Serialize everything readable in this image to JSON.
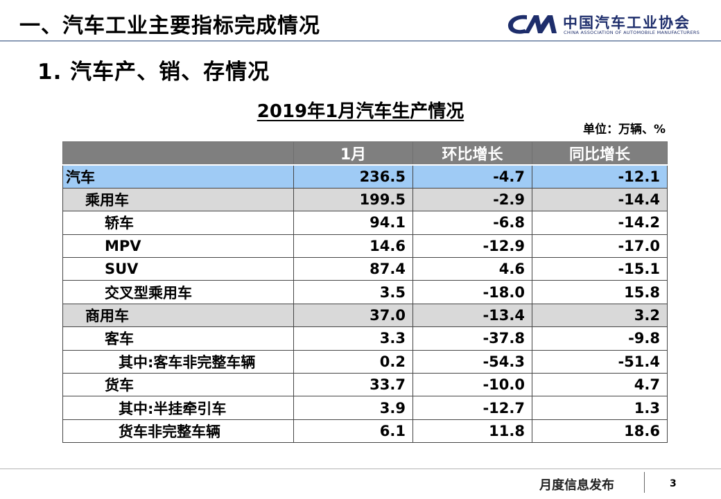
{
  "header": {
    "title": "一、汽车工业主要指标完成情况",
    "logo_cn": "中国汽车工业协会",
    "logo_en": "CHINA ASSOCIATION OF AUTOMOBILE MANUFACTURERS",
    "logo_mark_color": "#1d2d6b"
  },
  "section_title": "1. 汽车产、销、存情况",
  "table": {
    "title": "2019年1月汽车生产情况",
    "unit": "单位：万辆、%",
    "columns": [
      "",
      "1月",
      "环比增长",
      "同比增长"
    ],
    "rows": [
      {
        "label": "汽车",
        "level": 0,
        "values": [
          "236.5",
          "-4.7",
          "-12.1"
        ]
      },
      {
        "label": "乘用车",
        "level": 1,
        "values": [
          "199.5",
          "-2.9",
          "-14.4"
        ]
      },
      {
        "label": "轿车",
        "level": 2,
        "values": [
          "94.1",
          "-6.8",
          "-14.2"
        ]
      },
      {
        "label": "MPV",
        "level": 2,
        "values": [
          "14.6",
          "-12.9",
          "-17.0"
        ]
      },
      {
        "label": "SUV",
        "level": 2,
        "values": [
          "87.4",
          "4.6",
          "-15.1"
        ]
      },
      {
        "label": "交叉型乘用车",
        "level": 2,
        "values": [
          "3.5",
          "-18.0",
          "15.8"
        ]
      },
      {
        "label": "商用车",
        "level": 1,
        "values": [
          "37.0",
          "-13.4",
          "3.2"
        ]
      },
      {
        "label": "客车",
        "level": 2,
        "values": [
          "3.3",
          "-37.8",
          "-9.8"
        ]
      },
      {
        "label": "其中:客车非完整车辆",
        "level": 3,
        "values": [
          "0.2",
          "-54.3",
          "-51.4"
        ]
      },
      {
        "label": "货车",
        "level": 2,
        "values": [
          "33.7",
          "-10.0",
          "4.7"
        ]
      },
      {
        "label": "其中:半挂牵引车",
        "level": 3,
        "values": [
          "3.9",
          "-12.7",
          "1.3"
        ]
      },
      {
        "label": "货车非完整车辆",
        "level": 3,
        "values": [
          "6.1",
          "11.8",
          "18.6"
        ]
      }
    ],
    "colors": {
      "header_bg": "#7f7f7f",
      "total_row_bg": "#9fcbf5",
      "subtotal_row_bg": "#d9d9d9"
    }
  },
  "footer": {
    "text": "月度信息发布",
    "page_number": "3"
  }
}
